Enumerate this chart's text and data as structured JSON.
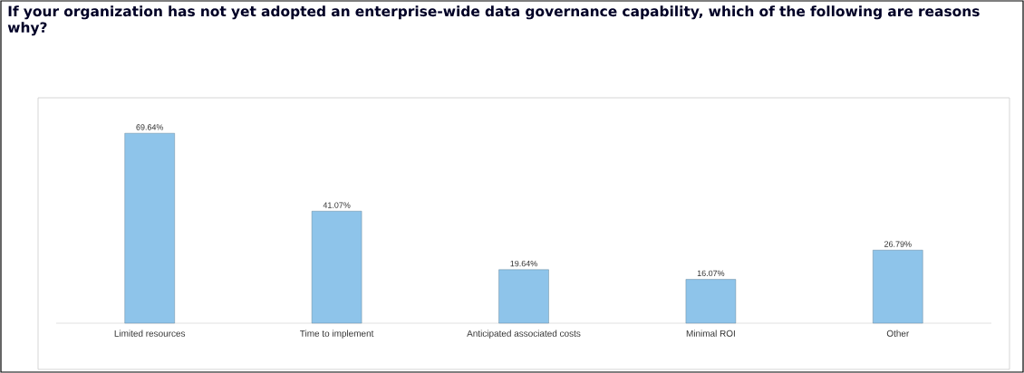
{
  "chart_data": {
    "type": "bar",
    "title": "If your organization has not yet adopted an enterprise-wide data governance capability, which of the following are reasons why?",
    "categories": [
      "Limited resources",
      "Time to implement",
      "Anticipated associated costs",
      "Minimal ROI",
      "Other"
    ],
    "values": [
      69.64,
      41.07,
      19.64,
      16.07,
      26.79
    ],
    "value_labels": [
      "69.64%",
      "41.07%",
      "19.64%",
      "16.07%",
      "26.79%"
    ],
    "color": "#8ec4ea"
  }
}
